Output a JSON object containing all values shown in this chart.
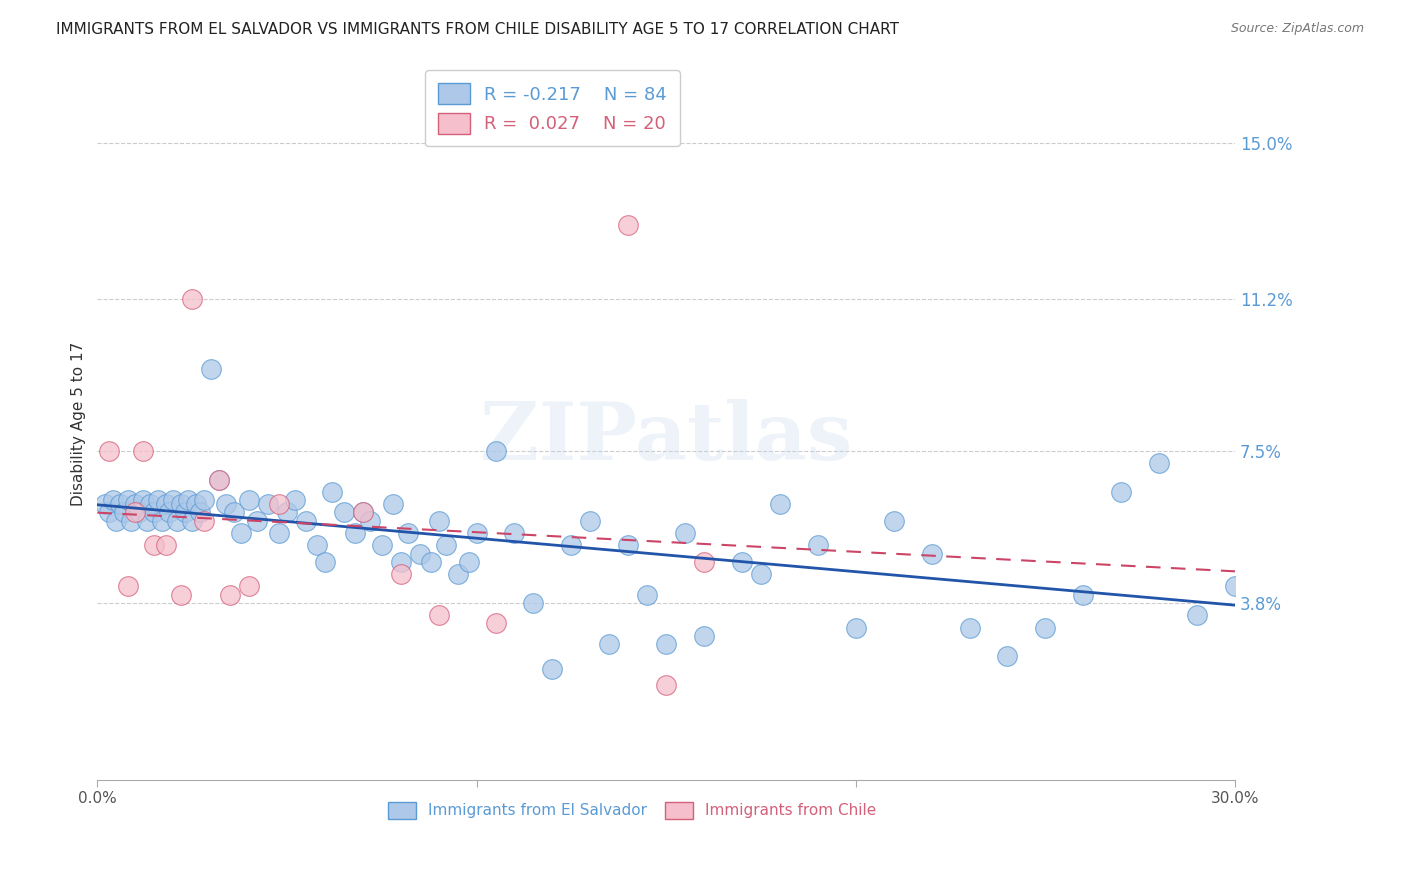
{
  "title": "IMMIGRANTS FROM EL SALVADOR VS IMMIGRANTS FROM CHILE DISABILITY AGE 5 TO 17 CORRELATION CHART",
  "source": "Source: ZipAtlas.com",
  "ylabel": "Disability Age 5 to 17",
  "y_ticks": [
    0.038,
    0.075,
    0.112,
    0.15
  ],
  "y_tick_labels": [
    "3.8%",
    "7.5%",
    "11.2%",
    "15.0%"
  ],
  "xlim": [
    0.0,
    0.3
  ],
  "ylim": [
    -0.005,
    0.168
  ],
  "blue_color": "#adc8e8",
  "blue_edge_color": "#5b9bd5",
  "pink_color": "#f5bfcc",
  "pink_edge_color": "#d4607a",
  "regression_blue_color": "#2255aa",
  "regression_pink_color": "#cc4466",
  "watermark": "ZIPatlas",
  "grid_color": "#cccccc",
  "background_color": "#ffffff",
  "title_fontsize": 11,
  "axis_label_fontsize": 11,
  "tick_fontsize": 11,
  "legend_fontsize": 13,
  "blue_scatter_x": [
    0.002,
    0.003,
    0.004,
    0.005,
    0.006,
    0.007,
    0.008,
    0.009,
    0.01,
    0.011,
    0.012,
    0.013,
    0.014,
    0.015,
    0.016,
    0.017,
    0.018,
    0.019,
    0.02,
    0.021,
    0.022,
    0.023,
    0.024,
    0.025,
    0.026,
    0.027,
    0.028,
    0.03,
    0.032,
    0.034,
    0.036,
    0.038,
    0.04,
    0.042,
    0.045,
    0.048,
    0.05,
    0.052,
    0.055,
    0.058,
    0.06,
    0.062,
    0.065,
    0.068,
    0.07,
    0.072,
    0.075,
    0.078,
    0.08,
    0.082,
    0.085,
    0.088,
    0.09,
    0.092,
    0.095,
    0.098,
    0.1,
    0.105,
    0.11,
    0.115,
    0.12,
    0.125,
    0.13,
    0.135,
    0.14,
    0.145,
    0.15,
    0.155,
    0.16,
    0.17,
    0.18,
    0.19,
    0.2,
    0.21,
    0.22,
    0.23,
    0.24,
    0.25,
    0.26,
    0.27,
    0.28,
    0.29,
    0.3,
    0.175
  ],
  "blue_scatter_y": [
    0.062,
    0.06,
    0.063,
    0.058,
    0.062,
    0.06,
    0.063,
    0.058,
    0.062,
    0.06,
    0.063,
    0.058,
    0.062,
    0.06,
    0.063,
    0.058,
    0.062,
    0.06,
    0.063,
    0.058,
    0.062,
    0.06,
    0.063,
    0.058,
    0.062,
    0.06,
    0.063,
    0.095,
    0.068,
    0.062,
    0.06,
    0.055,
    0.063,
    0.058,
    0.062,
    0.055,
    0.06,
    0.063,
    0.058,
    0.052,
    0.048,
    0.065,
    0.06,
    0.055,
    0.06,
    0.058,
    0.052,
    0.062,
    0.048,
    0.055,
    0.05,
    0.048,
    0.058,
    0.052,
    0.045,
    0.048,
    0.055,
    0.075,
    0.055,
    0.038,
    0.022,
    0.052,
    0.058,
    0.028,
    0.052,
    0.04,
    0.028,
    0.055,
    0.03,
    0.048,
    0.062,
    0.052,
    0.032,
    0.058,
    0.05,
    0.032,
    0.025,
    0.032,
    0.04,
    0.065,
    0.072,
    0.035,
    0.042,
    0.045
  ],
  "pink_scatter_x": [
    0.003,
    0.008,
    0.01,
    0.012,
    0.015,
    0.018,
    0.022,
    0.025,
    0.028,
    0.032,
    0.035,
    0.04,
    0.048,
    0.07,
    0.08,
    0.09,
    0.105,
    0.14,
    0.15,
    0.16
  ],
  "pink_scatter_y": [
    0.075,
    0.042,
    0.06,
    0.075,
    0.052,
    0.052,
    0.04,
    0.112,
    0.058,
    0.068,
    0.04,
    0.042,
    0.062,
    0.06,
    0.045,
    0.035,
    0.033,
    0.13,
    0.018,
    0.048
  ]
}
